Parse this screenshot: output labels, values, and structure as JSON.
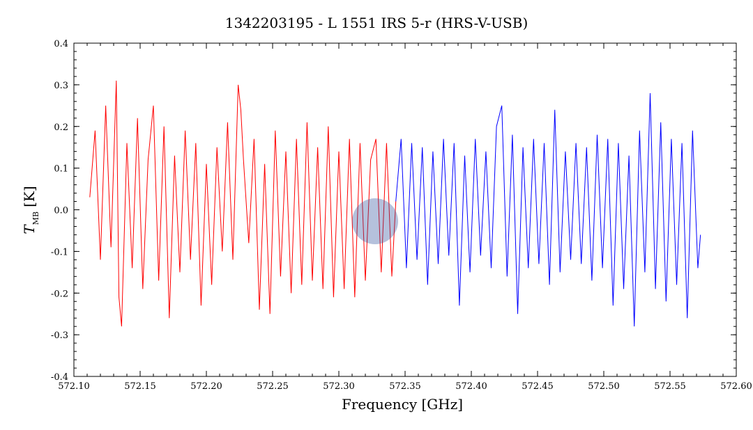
{
  "chart_data": {
    "type": "line",
    "title": "1342203195 - L 1551 IRS 5-r (HRS-V-USB)",
    "xlabel": "Frequency [GHz]",
    "ylabel": {
      "main": "T",
      "subscript": "MB",
      "unit": "[K]"
    },
    "xlim": [
      572.1,
      572.6
    ],
    "ylim": [
      -0.4,
      0.4
    ],
    "x_ticks": [
      "572.10",
      "572.15",
      "572.20",
      "572.25",
      "572.30",
      "572.35",
      "572.40",
      "572.45",
      "572.50",
      "572.55",
      "572.60"
    ],
    "y_ticks": [
      "-0.4",
      "-0.3",
      "-0.2",
      "-0.1",
      "0.0",
      "0.1",
      "0.2",
      "0.3",
      "0.4"
    ],
    "grid": false,
    "series": [
      {
        "color": "#ff0000",
        "x": [
          572.112,
          572.116,
          572.12,
          572.124,
          572.128,
          572.132,
          572.134,
          572.136,
          572.14,
          572.144,
          572.148,
          572.152,
          572.156,
          572.16,
          572.164,
          572.168,
          572.172,
          572.176,
          572.18,
          572.184,
          572.188,
          572.192,
          572.196,
          572.2,
          572.204,
          572.208,
          572.212,
          572.216,
          572.22,
          572.224,
          572.226,
          572.228,
          572.232,
          572.236,
          572.24,
          572.244,
          572.248,
          572.252,
          572.256,
          572.26,
          572.264,
          572.268,
          572.272,
          572.276,
          572.28,
          572.284,
          572.288,
          572.292,
          572.296,
          572.3,
          572.304,
          572.308,
          572.312,
          572.316,
          572.32,
          572.324,
          572.328,
          572.332,
          572.336,
          572.34,
          572.343
        ],
        "y": [
          0.03,
          0.19,
          -0.12,
          0.25,
          -0.09,
          0.31,
          -0.21,
          -0.28,
          0.16,
          -0.14,
          0.22,
          -0.19,
          0.12,
          0.25,
          -0.17,
          0.2,
          -0.26,
          0.13,
          -0.15,
          0.19,
          -0.12,
          0.16,
          -0.23,
          0.11,
          -0.18,
          0.15,
          -0.1,
          0.21,
          -0.12,
          0.3,
          0.24,
          0.12,
          -0.08,
          0.17,
          -0.24,
          0.11,
          -0.25,
          0.19,
          -0.16,
          0.14,
          -0.2,
          0.17,
          -0.18,
          0.21,
          -0.17,
          0.15,
          -0.19,
          0.2,
          -0.21,
          0.14,
          -0.19,
          0.17,
          -0.21,
          0.16,
          -0.17,
          0.12,
          0.17,
          -0.15,
          0.16,
          -0.16,
          0.02
        ]
      },
      {
        "color": "#0000ff",
        "x": [
          572.343,
          572.347,
          572.351,
          572.355,
          572.359,
          572.363,
          572.367,
          572.371,
          572.375,
          572.379,
          572.383,
          572.387,
          572.391,
          572.395,
          572.399,
          572.403,
          572.407,
          572.411,
          572.415,
          572.419,
          572.423,
          572.427,
          572.431,
          572.435,
          572.439,
          572.443,
          572.447,
          572.451,
          572.455,
          572.459,
          572.463,
          572.467,
          572.471,
          572.475,
          572.479,
          572.483,
          572.487,
          572.491,
          572.495,
          572.499,
          572.503,
          572.507,
          572.511,
          572.515,
          572.519,
          572.523,
          572.527,
          572.531,
          572.535,
          572.539,
          572.543,
          572.547,
          572.551,
          572.555,
          572.559,
          572.563,
          572.567,
          572.571,
          572.573
        ],
        "y": [
          0.02,
          0.17,
          -0.14,
          0.16,
          -0.12,
          0.15,
          -0.18,
          0.14,
          -0.13,
          0.17,
          -0.11,
          0.16,
          -0.23,
          0.13,
          -0.15,
          0.17,
          -0.11,
          0.14,
          -0.14,
          0.2,
          0.25,
          -0.16,
          0.18,
          -0.25,
          0.15,
          -0.14,
          0.17,
          -0.13,
          0.16,
          -0.18,
          0.24,
          -0.15,
          0.14,
          -0.12,
          0.16,
          -0.13,
          0.15,
          -0.17,
          0.18,
          -0.14,
          0.17,
          -0.23,
          0.16,
          -0.19,
          0.13,
          -0.28,
          0.19,
          -0.15,
          0.28,
          -0.19,
          0.21,
          -0.22,
          0.17,
          -0.18,
          0.16,
          -0.26,
          0.19,
          -0.14,
          -0.06
        ]
      }
    ]
  }
}
